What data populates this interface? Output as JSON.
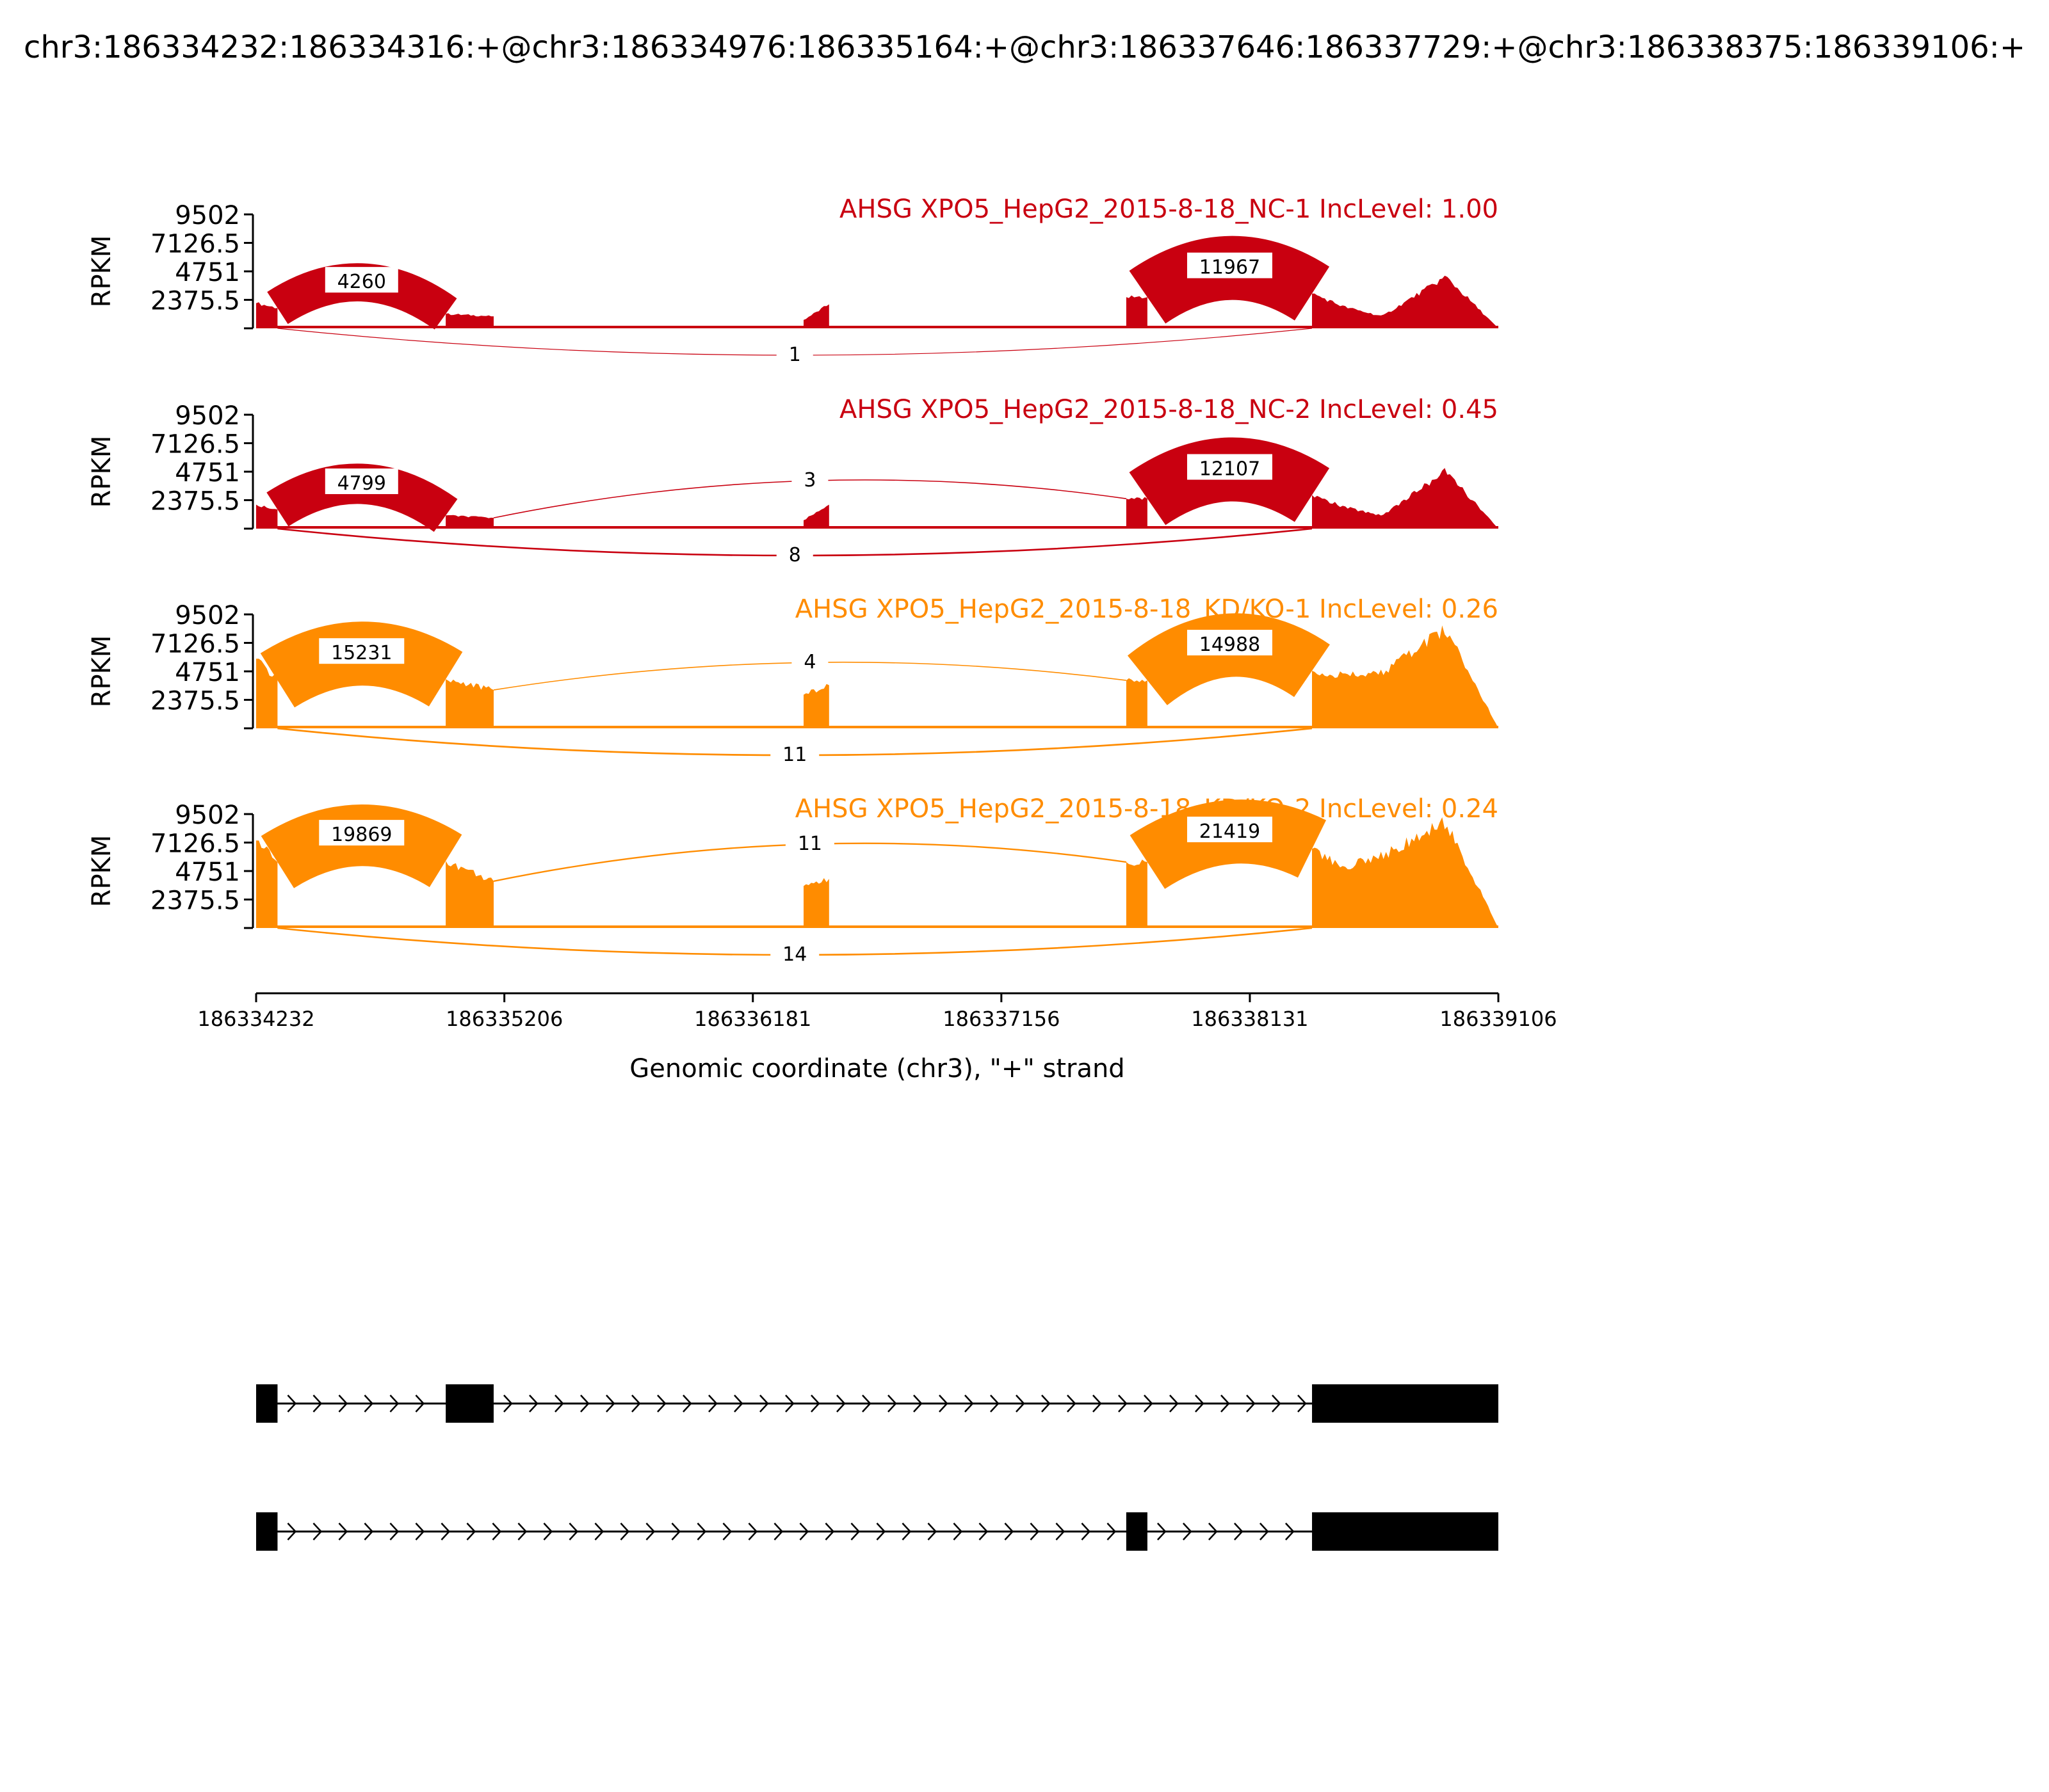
{
  "title": "chr3:186334232:186334316:+@chr3:186334976:186335164:+@chr3:186337646:186337729:+@chr3:186338375:186339106:+",
  "chart_data": {
    "type": "area",
    "xlabel": "Genomic coordinate (chr3), \"+\" strand",
    "ylabel": "RPKM",
    "xlim": [
      186334232,
      186339106
    ],
    "ylim": [
      0,
      9502
    ],
    "x_ticks": [
      "186334232",
      "186335206",
      "186336181",
      "186337156",
      "186338131",
      "186339106"
    ],
    "y_ticks": [
      "9502",
      "7126.5",
      "4751",
      "2375.5"
    ],
    "exons": [
      {
        "start": 186334232,
        "end": 186334316
      },
      {
        "start": 186334976,
        "end": 186335164
      },
      {
        "start": 186336380,
        "end": 186336480
      },
      {
        "start": 186337646,
        "end": 186337729
      },
      {
        "start": 186338375,
        "end": 186339106
      }
    ],
    "series": [
      {
        "name": "AHSG XPO5_HepG2_2015-8-18_NC-1 IncLevel: 1.00",
        "color": "#c90010",
        "exon_levels": [
          {
            "x": [
              186334232,
              186334316
            ],
            "y": [
              2100,
              1700
            ]
          },
          {
            "x": [
              186334976,
              186335164
            ],
            "y": [
              1200,
              1000
            ]
          },
          {
            "x": [
              186336380,
              186336480
            ],
            "y": [
              700,
              2000
            ]
          },
          {
            "x": [
              186337646,
              186337729
            ],
            "y": [
              2600,
              2600
            ]
          },
          {
            "x": [
              186338375,
              186338500,
              186338650,
              186338900,
              186339106
            ],
            "y": [
              2900,
              1800,
              1000,
              4300,
              0
            ]
          }
        ],
        "junctions": [
          {
            "start": 186334316,
            "end": 186334976,
            "count": "4260",
            "side": "top"
          },
          {
            "start": 186337729,
            "end": 186338375,
            "count": "11967",
            "side": "top"
          },
          {
            "start": 186334316,
            "end": 186338375,
            "count": "1",
            "side": "bottom"
          }
        ]
      },
      {
        "name": "AHSG XPO5_HepG2_2015-8-18_NC-2 IncLevel: 0.45",
        "color": "#c90010",
        "exon_levels": [
          {
            "x": [
              186334232,
              186334316
            ],
            "y": [
              2000,
              1600
            ]
          },
          {
            "x": [
              186334976,
              186335164
            ],
            "y": [
              1100,
              900
            ]
          },
          {
            "x": [
              186336380,
              186336480
            ],
            "y": [
              700,
              2000
            ]
          },
          {
            "x": [
              186337646,
              186337729
            ],
            "y": [
              2500,
              2500
            ]
          },
          {
            "x": [
              186338375,
              186338500,
              186338650,
              186338900,
              186339106
            ],
            "y": [
              2800,
              1800,
              1100,
              4800,
              0
            ]
          }
        ],
        "junctions": [
          {
            "start": 186334316,
            "end": 186334976,
            "count": "4799",
            "side": "top"
          },
          {
            "start": 186337729,
            "end": 186338375,
            "count": "12107",
            "side": "top"
          },
          {
            "start": 186335164,
            "end": 186337646,
            "count": "3",
            "side": "top"
          },
          {
            "start": 186334316,
            "end": 186338375,
            "count": "8",
            "side": "bottom"
          }
        ]
      },
      {
        "name": "AHSG XPO5_HepG2_2015-8-18_KD/KO-1 IncLevel: 0.26",
        "color": "#ff8c00",
        "exon_levels": [
          {
            "x": [
              186334232,
              186334316
            ],
            "y": [
              5800,
              4000
            ]
          },
          {
            "x": [
              186334976,
              186335164
            ],
            "y": [
              4100,
              3200
            ]
          },
          {
            "x": [
              186336380,
              186336480
            ],
            "y": [
              2800,
              3600
            ]
          },
          {
            "x": [
              186337646,
              186337729
            ],
            "y": [
              4000,
              4000
            ]
          },
          {
            "x": [
              186338375,
              186338500,
              186338650,
              186338900,
              186339106
            ],
            "y": [
              4800,
              4400,
              4600,
              8300,
              0
            ]
          }
        ],
        "junctions": [
          {
            "start": 186334316,
            "end": 186334976,
            "count": "15231",
            "side": "top"
          },
          {
            "start": 186337729,
            "end": 186338375,
            "count": "14988",
            "side": "top"
          },
          {
            "start": 186335164,
            "end": 186337646,
            "count": "4",
            "side": "top"
          },
          {
            "start": 186334316,
            "end": 186338375,
            "count": "11",
            "side": "bottom"
          }
        ]
      },
      {
        "name": "AHSG XPO5_HepG2_2015-8-18_KD/KO-2 IncLevel: 0.24",
        "color": "#ff8c00",
        "exon_levels": [
          {
            "x": [
              186334232,
              186334316
            ],
            "y": [
              7300,
              5500
            ]
          },
          {
            "x": [
              186334976,
              186335164
            ],
            "y": [
              5600,
              3900
            ]
          },
          {
            "x": [
              186336380,
              186336480
            ],
            "y": [
              3500,
              4100
            ]
          },
          {
            "x": [
              186337646,
              186337729
            ],
            "y": [
              5500,
              5500
            ]
          },
          {
            "x": [
              186338375,
              186338500,
              186338650,
              186338900,
              186339106
            ],
            "y": [
              6600,
              5100,
              6000,
              8800,
              0
            ]
          }
        ],
        "junctions": [
          {
            "start": 186334316,
            "end": 186334976,
            "count": "19869",
            "side": "top"
          },
          {
            "start": 186337729,
            "end": 186338375,
            "count": "21419",
            "side": "top"
          },
          {
            "start": 186335164,
            "end": 186337646,
            "count": "11",
            "side": "top"
          },
          {
            "start": 186334316,
            "end": 186338375,
            "count": "14",
            "side": "bottom"
          }
        ]
      }
    ],
    "isoforms": [
      {
        "exons": [
          [
            186334232,
            186334316
          ],
          [
            186334976,
            186335164
          ],
          [
            186338375,
            186339106
          ]
        ]
      },
      {
        "exons": [
          [
            186334232,
            186334316
          ],
          [
            186337646,
            186337729
          ],
          [
            186338375,
            186339106
          ]
        ]
      }
    ]
  }
}
